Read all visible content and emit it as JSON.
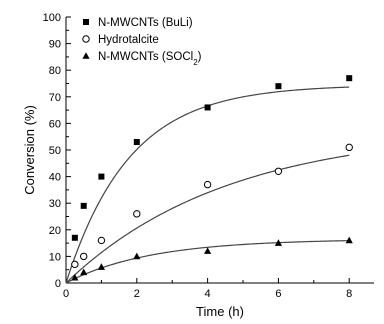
{
  "chart_data": {
    "type": "scatter",
    "xlabel": "Time (h)",
    "ylabel": "Conversion (%)",
    "xlim": [
      0,
      8.7
    ],
    "ylim": [
      0,
      100
    ],
    "xticks": [
      0,
      2,
      4,
      6,
      8
    ],
    "yticks": [
      0,
      10,
      20,
      30,
      40,
      50,
      60,
      70,
      80,
      90,
      100
    ],
    "legend_position": "top-left",
    "grid": false,
    "series": [
      {
        "name": "N-MWCNTs (BuLi)",
        "marker": "filled-square",
        "color": "#000000",
        "x": [
          0.25,
          0.5,
          1,
          2,
          4,
          6,
          8
        ],
        "y": [
          17,
          29,
          40,
          53,
          66,
          74,
          77
        ],
        "fit": {
          "form": "a*(1-exp(-k*x))",
          "a": 74.5,
          "k": 0.56
        }
      },
      {
        "name": "Hydrotalcite",
        "marker": "open-circle",
        "color": "#000000",
        "x": [
          0.25,
          0.5,
          1,
          2,
          4,
          6,
          8
        ],
        "y": [
          7,
          10,
          16,
          26,
          37,
          42,
          51
        ],
        "fit": {
          "form": "a*(1-exp(-k*x))",
          "a": 58,
          "k": 0.22
        }
      },
      {
        "name": "N-MWCNTs (SOCl",
        "name_subscript": "2",
        "name_suffix": ")",
        "marker": "filled-triangle",
        "color": "#000000",
        "x": [
          0.25,
          0.5,
          1,
          2,
          4,
          6,
          8
        ],
        "y": [
          2,
          4,
          6,
          10,
          12,
          15,
          16
        ],
        "fit": {
          "form": "a*(1-exp(-k*x))",
          "a": 16.5,
          "k": 0.42
        }
      }
    ]
  }
}
